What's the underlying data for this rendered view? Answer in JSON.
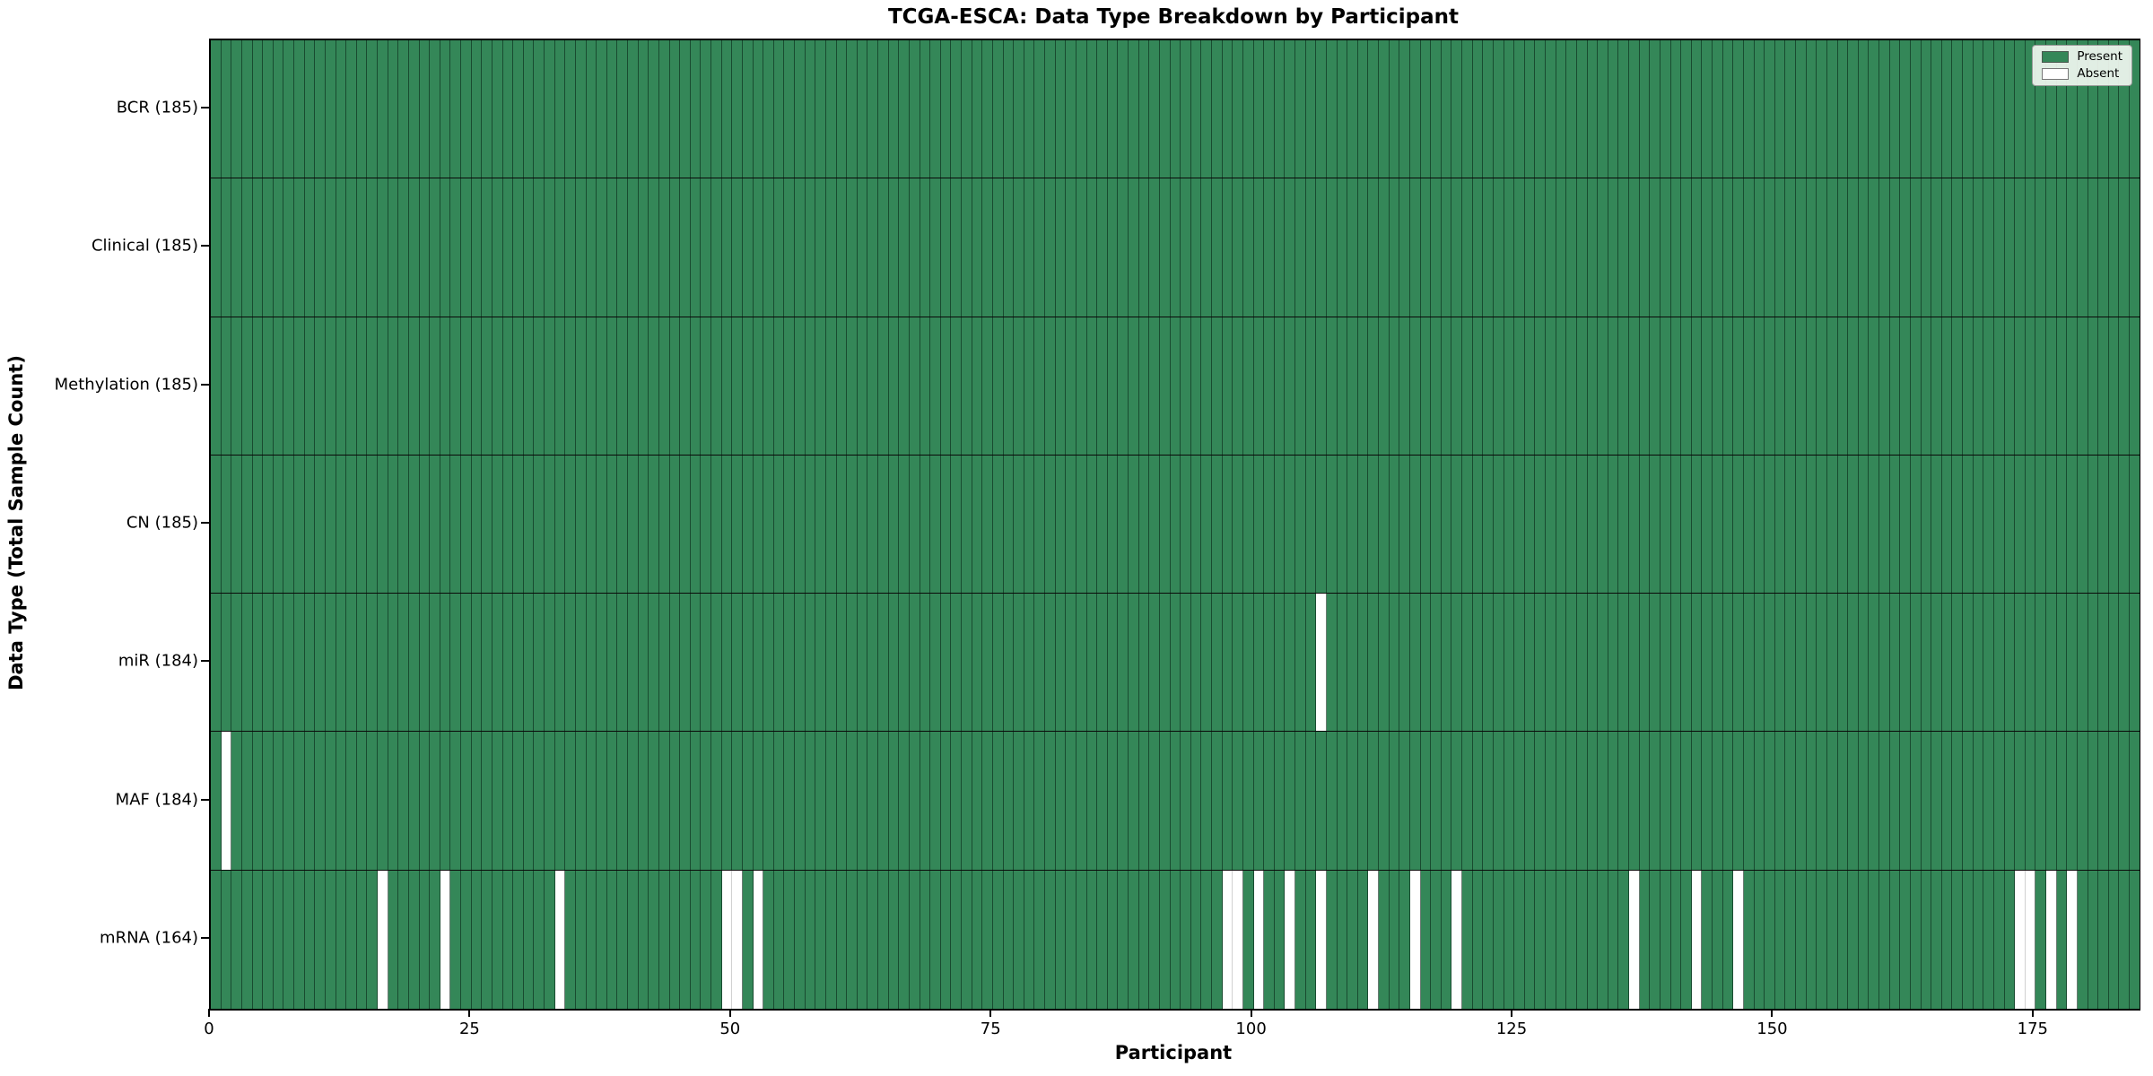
{
  "chart_data": {
    "type": "heatmap",
    "title": "TCGA-ESCA: Data Type Breakdown by Participant",
    "xlabel": "Participant",
    "ylabel": "Data Type (Total Sample Count)",
    "n_participants": 185,
    "x_ticks": [
      0,
      25,
      50,
      75,
      100,
      125,
      150,
      175
    ],
    "x_range": [
      0,
      185
    ],
    "grid": false,
    "legend_position": "upper right",
    "legend": [
      {
        "label": "Present",
        "color": "#348758"
      },
      {
        "label": "Absent",
        "color": "#ffffff"
      }
    ],
    "colors": {
      "present": "#348758",
      "absent": "#ffffff",
      "cell_edge": "#1e4f33",
      "row_separator": "#0a0a0a",
      "spine": "#000000"
    },
    "rows": [
      {
        "name": "BCR",
        "label": "BCR (185)",
        "present_count": 185,
        "absent": []
      },
      {
        "name": "Clinical",
        "label": "Clinical (185)",
        "present_count": 185,
        "absent": []
      },
      {
        "name": "Methylation",
        "label": "Methylation (185)",
        "present_count": 185,
        "absent": []
      },
      {
        "name": "CN",
        "label": "CN (185)",
        "present_count": 185,
        "absent": []
      },
      {
        "name": "miR",
        "label": "miR (184)",
        "present_count": 184,
        "absent": [
          106
        ]
      },
      {
        "name": "MAF",
        "label": "MAF (184)",
        "present_count": 184,
        "absent": [
          1
        ]
      },
      {
        "name": "mRNA",
        "label": "mRNA (164)",
        "present_count": 164,
        "absent": [
          16,
          22,
          33,
          49,
          50,
          52,
          97,
          98,
          100,
          103,
          106,
          111,
          115,
          119,
          136,
          142,
          146,
          173,
          174,
          176,
          178
        ]
      }
    ]
  }
}
